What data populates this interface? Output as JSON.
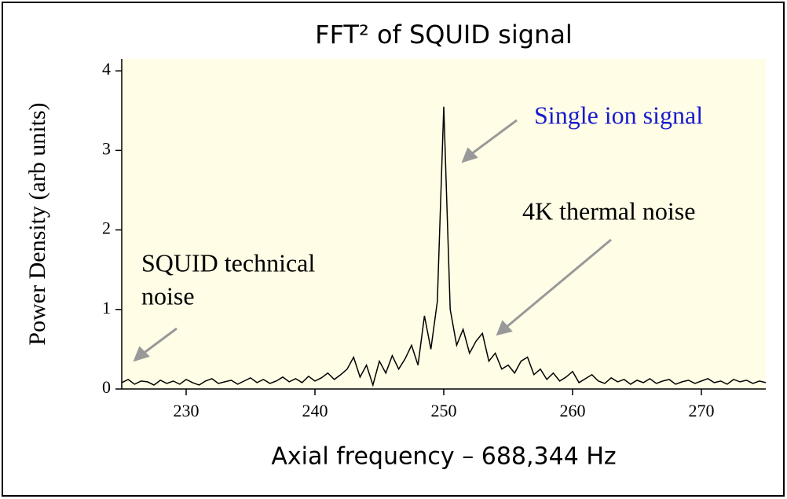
{
  "chart_data": {
    "type": "line",
    "title": "FFT² of SQUID signal",
    "x_label": "Axial frequency – 688,344 Hz",
    "y_label": "Power Density (arb units)",
    "annotations": [
      "Single ion signal",
      "4K thermal noise",
      "SQUID technical",
      "noise"
    ],
    "x": [
      225,
      225.5,
      226,
      226.5,
      227,
      227.5,
      228,
      228.5,
      229,
      229.5,
      230,
      230.5,
      231,
      231.5,
      232,
      232.5,
      233,
      233.5,
      234,
      234.5,
      235,
      235.5,
      236,
      236.5,
      237,
      237.5,
      238,
      238.5,
      239,
      239.5,
      240,
      240.5,
      241,
      241.5,
      242,
      242.5,
      243,
      243.5,
      244,
      244.5,
      245,
      245.5,
      246,
      246.5,
      247,
      247.5,
      248,
      248.5,
      249,
      249.5,
      250,
      250.5,
      251,
      251.5,
      252,
      252.5,
      253,
      253.5,
      254,
      254.5,
      255,
      255.5,
      256,
      256.5,
      257,
      257.5,
      258,
      258.5,
      259,
      259.5,
      260,
      260.5,
      261,
      261.5,
      262,
      262.5,
      263,
      263.5,
      264,
      264.5,
      265,
      265.5,
      266,
      266.5,
      267,
      267.5,
      268,
      268.5,
      269,
      269.5,
      270,
      270.5,
      271,
      271.5,
      272,
      272.5,
      273,
      273.5,
      274,
      274.5,
      275
    ],
    "series": [
      {
        "color": "#000000",
        "values": [
          0.08,
          0.12,
          0.06,
          0.1,
          0.09,
          0.05,
          0.11,
          0.07,
          0.1,
          0.06,
          0.12,
          0.08,
          0.05,
          0.1,
          0.13,
          0.07,
          0.09,
          0.11,
          0.06,
          0.1,
          0.14,
          0.08,
          0.12,
          0.07,
          0.1,
          0.15,
          0.09,
          0.13,
          0.08,
          0.16,
          0.1,
          0.14,
          0.2,
          0.12,
          0.18,
          0.25,
          0.4,
          0.15,
          0.3,
          0.05,
          0.35,
          0.2,
          0.42,
          0.25,
          0.38,
          0.55,
          0.3,
          0.92,
          0.5,
          1.1,
          3.55,
          1.0,
          0.55,
          0.75,
          0.45,
          0.6,
          0.7,
          0.35,
          0.45,
          0.25,
          0.3,
          0.2,
          0.35,
          0.4,
          0.18,
          0.25,
          0.12,
          0.2,
          0.1,
          0.15,
          0.22,
          0.08,
          0.13,
          0.18,
          0.1,
          0.07,
          0.14,
          0.09,
          0.12,
          0.06,
          0.11,
          0.08,
          0.13,
          0.07,
          0.1,
          0.12,
          0.06,
          0.09,
          0.11,
          0.07,
          0.1,
          0.13,
          0.08,
          0.1,
          0.06,
          0.12,
          0.09,
          0.11,
          0.07,
          0.1,
          0.08
        ]
      }
    ],
    "xlim": [
      225,
      275
    ],
    "xticks": [
      230,
      240,
      250,
      260,
      270
    ],
    "ylim": [
      0,
      4.15
    ],
    "yticks": [
      0,
      1,
      2,
      3,
      4
    ],
    "background": "#fffde6"
  }
}
